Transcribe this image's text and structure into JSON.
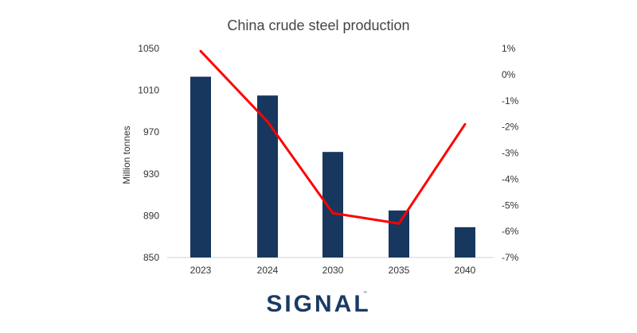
{
  "chart_data": {
    "type": "bar",
    "title": "China crude steel production",
    "categories": [
      "2023",
      "2024",
      "2030",
      "2035",
      "2040"
    ],
    "series": [
      {
        "type": "bar",
        "axis": "left",
        "values": [
          1023,
          1005,
          951,
          895,
          879
        ],
        "color": "#17375e"
      },
      {
        "type": "line",
        "axis": "right",
        "values": [
          0.9,
          -1.8,
          -5.3,
          -5.7,
          -1.9
        ],
        "color": "#ff0000"
      }
    ],
    "ylabel": "Million tonnes",
    "ylim": [
      850,
      1050
    ],
    "yticks": [
      "850",
      "890",
      "930",
      "970",
      "1010",
      "1050"
    ],
    "y2lim": [
      -7,
      1
    ],
    "y2ticks": [
      "-7%",
      "-6%",
      "-5%",
      "-4%",
      "-3%",
      "-2%",
      "-1%",
      "0%",
      "1%"
    ],
    "grid": false,
    "legend": "none"
  },
  "logo": {
    "text": "SIGNAL",
    "tm": "™"
  }
}
